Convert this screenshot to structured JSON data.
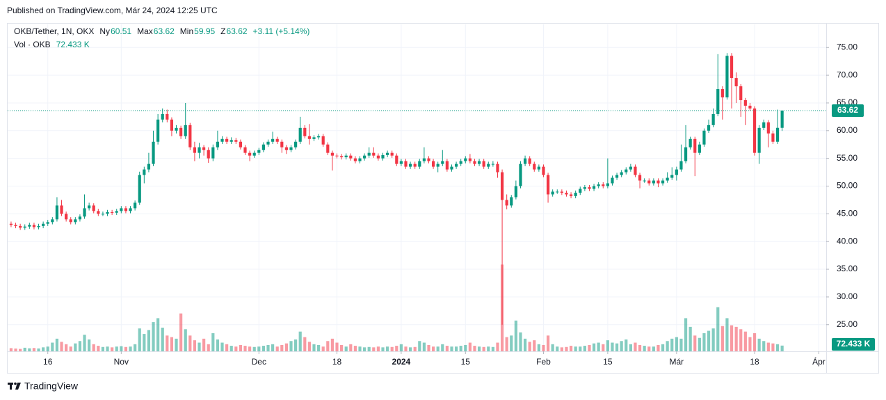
{
  "published": "Published on TradingView.com, Már 24, 2024 12:25 UTC",
  "brand": "TradingView",
  "chart_data": {
    "type": "candlestick",
    "title": "OKB/Tether, 1N, OKX",
    "ohlc_labels": [
      "Ny",
      "Max",
      "Min",
      "Z"
    ],
    "change_label": "+3.11 (+5.14%)",
    "volume_title": "Vol · OKB",
    "volume_last_label": "72.433 K",
    "up_color": "#089981",
    "down_color": "#f23645",
    "grid": true,
    "xlim": [
      -0.9,
      177.6
    ],
    "xticks": [
      {
        "value": 8,
        "label": "16"
      },
      {
        "value": 24,
        "label": "Nov"
      },
      {
        "value": 54,
        "label": "Dec"
      },
      {
        "value": 71,
        "label": "18"
      },
      {
        "value": 85,
        "label": "2024",
        "bold": true
      },
      {
        "value": 99,
        "label": "15"
      },
      {
        "value": 116,
        "label": "Feb"
      },
      {
        "value": 130,
        "label": "15"
      },
      {
        "value": 145,
        "label": "Már"
      },
      {
        "value": 162,
        "label": "18"
      },
      {
        "value": 176,
        "label": "Ápr"
      }
    ],
    "ylim": [
      20.2,
      79.3
    ],
    "yticks": [
      {
        "value": 25,
        "label": "25.00"
      },
      {
        "value": 30,
        "label": "30.00"
      },
      {
        "value": 35,
        "label": "35.00"
      },
      {
        "value": 40,
        "label": "40.00"
      },
      {
        "value": 45,
        "label": "45.00"
      },
      {
        "value": 50,
        "label": "50.00"
      },
      {
        "value": 55,
        "label": "55.00"
      },
      {
        "value": 60,
        "label": "60.00"
      },
      {
        "value": 65,
        "label": "65.00"
      },
      {
        "value": 70,
        "label": "70.00"
      },
      {
        "value": 75,
        "label": "75.00"
      }
    ],
    "volume_lim": [
      0,
      1500
    ],
    "open": [
      43.2,
      43.0,
      42.8,
      42.5,
      42.7,
      43.0,
      42.6,
      42.8,
      43.2,
      43.5,
      44.0,
      46.5,
      45.0,
      44.0,
      43.5,
      44.0,
      44.5,
      46.0,
      46.5,
      45.5,
      45.0,
      45.0,
      45.3,
      45.2,
      45.5,
      46.0,
      45.5,
      46.0,
      47.0,
      52.0,
      53.0,
      54.0,
      58.0,
      62.0,
      63.0,
      62.0,
      60.0,
      60.5,
      59.0,
      61.0,
      57.0,
      56.0,
      57.0,
      56.5,
      55.0,
      57.0,
      58.0,
      58.5,
      58.0,
      58.3,
      58.0,
      57.0,
      56.0,
      55.5,
      56.0,
      56.5,
      57.5,
      58.0,
      58.5,
      58.0,
      57.0,
      56.5,
      57.0,
      58.0,
      60.5,
      59.0,
      58.5,
      58.8,
      59.0,
      57.5,
      56.0,
      55.5,
      55.4,
      55.2,
      55.5,
      55.0,
      54.5,
      55.0,
      55.5,
      56.0,
      55.5,
      55.0,
      55.6,
      56.0,
      55.5,
      54.0,
      54.5,
      53.5,
      54.0,
      53.5,
      54.5,
      55.0,
      54.5,
      53.5,
      54.0,
      54.5,
      53.0,
      53.5,
      54.0,
      54.5,
      55.0,
      54.5,
      54.0,
      54.5,
      53.5,
      54.0,
      54.0,
      52.5,
      47.5,
      46.5,
      48.0,
      50.0,
      54.0,
      55.0,
      54.0,
      53.0,
      53.5,
      52.0,
      48.5,
      49.0,
      49.0,
      48.8,
      48.5,
      48.2,
      48.8,
      49.5,
      49.8,
      49.5,
      50.0,
      50.3,
      50.0,
      50.5,
      51.5,
      52.0,
      52.5,
      53.0,
      53.5,
      52.0,
      51.0,
      51.0,
      50.5,
      51.0,
      50.5,
      51.0,
      51.5,
      52.0,
      53.0,
      54.5,
      57.0,
      58.5,
      56.0,
      57.5,
      60.0,
      61.0,
      63.0,
      67.5,
      66.0,
      73.5,
      69.5,
      68.0,
      65.5,
      64.5,
      64.0,
      56.0,
      60.5,
      61.5,
      59.5,
      58.0,
      60.51
    ],
    "high": [
      43.6,
      43.4,
      43.2,
      43.1,
      43.4,
      43.4,
      43.2,
      43.6,
      43.9,
      44.4,
      48.0,
      47.5,
      45.4,
      44.4,
      44.4,
      44.9,
      48.5,
      47.0,
      46.9,
      45.9,
      45.4,
      45.7,
      45.7,
      45.9,
      46.4,
      46.4,
      46.4,
      47.4,
      52.6,
      53.5,
      56.0,
      60.0,
      63.0,
      64.0,
      63.8,
      62.4,
      61.0,
      60.9,
      65.0,
      61.4,
      58.0,
      57.8,
      57.4,
      57.0,
      57.5,
      60.0,
      59.0,
      58.9,
      58.8,
      58.7,
      58.4,
      57.4,
      56.4,
      56.4,
      56.9,
      57.9,
      58.4,
      59.8,
      58.9,
      58.4,
      57.4,
      57.4,
      58.4,
      62.5,
      61.0,
      61.2,
      59.2,
      59.4,
      59.4,
      57.9,
      56.4,
      55.9,
      55.8,
      55.9,
      55.9,
      55.4,
      55.4,
      55.9,
      57.0,
      57.0,
      55.9,
      56.0,
      56.4,
      56.4,
      55.9,
      54.9,
      54.9,
      54.4,
      54.4,
      54.9,
      57.0,
      55.4,
      54.9,
      54.4,
      56.5,
      54.9,
      53.9,
      54.4,
      54.9,
      55.4,
      55.8,
      54.9,
      54.9,
      54.9,
      54.4,
      54.5,
      54.4,
      53.0,
      48.5,
      48.4,
      51.0,
      54.5,
      55.5,
      55.4,
      54.4,
      53.9,
      53.9,
      52.4,
      49.4,
      49.4,
      49.4,
      49.2,
      48.9,
      49.2,
      49.9,
      50.2,
      50.2,
      50.4,
      50.7,
      50.7,
      55.0,
      51.9,
      52.4,
      52.9,
      53.4,
      54.0,
      53.9,
      52.4,
      51.4,
      51.4,
      51.4,
      51.4,
      51.4,
      52.5,
      53.4,
      53.5,
      57.5,
      61.0,
      58.9,
      58.9,
      58.0,
      60.4,
      62.0,
      64.0,
      73.8,
      68.0,
      74.0,
      74.0,
      70.5,
      68.4,
      65.9,
      65.0,
      64.4,
      61.0,
      62.0,
      61.9,
      60.0,
      63.8,
      63.62
    ],
    "low": [
      42.6,
      42.4,
      42.1,
      42.1,
      42.3,
      42.2,
      42.2,
      42.4,
      42.8,
      43.1,
      43.6,
      44.6,
      43.6,
      43.1,
      43.1,
      43.6,
      44.1,
      45.6,
      45.1,
      44.6,
      44.6,
      44.6,
      44.8,
      44.8,
      45.1,
      45.1,
      45.1,
      45.6,
      46.6,
      50.5,
      52.5,
      53.6,
      57.5,
      61.5,
      61.5,
      59.0,
      59.5,
      58.5,
      58.5,
      56.5,
      54.5,
      55.0,
      55.5,
      54.2,
      54.5,
      56.5,
      57.6,
      57.6,
      57.6,
      57.6,
      56.6,
      55.6,
      54.5,
      55.1,
      55.6,
      56.1,
      57.1,
      57.6,
      57.6,
      56.0,
      55.8,
      56.1,
      56.6,
      57.6,
      58.6,
      57.5,
      58.1,
      58.4,
      57.1,
      55.6,
      52.8,
      55.0,
      54.8,
      54.8,
      54.6,
      54.1,
      54.1,
      54.6,
      55.1,
      55.1,
      54.6,
      54.6,
      55.2,
      55.1,
      53.6,
      53.6,
      53.1,
      53.1,
      53.1,
      53.1,
      54.1,
      54.1,
      53.1,
      52.5,
      53.6,
      52.6,
      52.6,
      53.1,
      53.6,
      54.1,
      54.1,
      53.6,
      53.6,
      53.1,
      53.1,
      53.5,
      51.5,
      25.0,
      45.8,
      46.1,
      47.6,
      49.6,
      53.6,
      53.6,
      52.6,
      52.6,
      51.6,
      47.0,
      48.1,
      48.6,
      48.4,
      48.1,
      47.8,
      47.8,
      48.4,
      49.1,
      49.1,
      49.1,
      49.6,
      49.6,
      49.6,
      50.1,
      51.1,
      51.6,
      52.1,
      52.6,
      51.6,
      49.6,
      50.6,
      50.1,
      50.1,
      49.8,
      50.1,
      50.6,
      51.1,
      51.0,
      52.6,
      54.1,
      56.6,
      51.8,
      55.6,
      57.1,
      59.6,
      60.6,
      62.6,
      62.0,
      65.6,
      64.0,
      65.0,
      62.5,
      61.0,
      63.6,
      55.5,
      54.0,
      60.1,
      57.0,
      57.6,
      57.6,
      59.95
    ],
    "close": [
      43.0,
      42.8,
      42.5,
      42.7,
      43.0,
      42.6,
      42.8,
      43.2,
      43.5,
      44.0,
      46.5,
      45.0,
      44.0,
      43.5,
      44.0,
      44.5,
      46.0,
      46.5,
      45.5,
      45.0,
      45.0,
      45.3,
      45.2,
      45.5,
      46.0,
      45.5,
      46.0,
      47.0,
      52.0,
      53.0,
      54.0,
      58.0,
      62.0,
      63.0,
      62.0,
      60.0,
      60.5,
      59.0,
      61.0,
      57.0,
      56.0,
      57.0,
      56.5,
      55.0,
      57.0,
      58.0,
      58.5,
      58.0,
      58.3,
      58.0,
      57.0,
      56.0,
      55.5,
      56.0,
      56.5,
      57.5,
      58.0,
      58.5,
      58.0,
      57.0,
      56.5,
      57.0,
      58.0,
      60.5,
      59.0,
      58.5,
      58.8,
      59.0,
      57.5,
      56.0,
      55.5,
      55.4,
      55.2,
      55.5,
      55.0,
      54.5,
      55.0,
      55.5,
      56.0,
      55.5,
      55.0,
      55.6,
      56.0,
      55.5,
      54.0,
      54.5,
      53.5,
      54.0,
      53.5,
      54.5,
      55.0,
      54.5,
      53.5,
      54.0,
      54.5,
      53.0,
      53.5,
      54.0,
      54.5,
      55.0,
      54.5,
      54.0,
      54.5,
      53.5,
      54.0,
      54.0,
      52.5,
      47.5,
      46.5,
      48.0,
      50.0,
      54.0,
      55.0,
      54.0,
      53.0,
      53.5,
      52.0,
      48.5,
      49.0,
      49.0,
      48.8,
      48.5,
      48.2,
      48.8,
      49.5,
      49.8,
      49.5,
      50.0,
      50.3,
      50.0,
      50.5,
      51.5,
      52.0,
      52.5,
      53.0,
      53.5,
      52.0,
      51.0,
      51.0,
      50.5,
      51.0,
      50.5,
      51.0,
      51.5,
      52.0,
      53.0,
      54.5,
      57.0,
      58.5,
      56.0,
      57.5,
      60.0,
      61.0,
      63.0,
      67.5,
      66.0,
      73.5,
      69.5,
      68.0,
      65.5,
      64.5,
      64.0,
      56.0,
      60.5,
      61.5,
      59.5,
      58.0,
      60.51,
      63.62
    ],
    "volume": [
      40,
      35,
      30,
      45,
      38,
      42,
      36,
      50,
      60,
      110,
      160,
      120,
      90,
      60,
      100,
      130,
      210,
      150,
      90,
      70,
      55,
      60,
      50,
      60,
      65,
      55,
      60,
      90,
      290,
      220,
      270,
      370,
      420,
      300,
      200,
      180,
      160,
      480,
      280,
      200,
      140,
      110,
      160,
      90,
      230,
      150,
      110,
      90,
      70,
      60,
      80,
      70,
      60,
      55,
      60,
      70,
      80,
      90,
      60,
      80,
      100,
      130,
      150,
      250,
      180,
      120,
      90,
      80,
      60,
      130,
      160,
      110,
      80,
      60,
      90,
      70,
      60,
      50,
      55,
      50,
      60,
      50,
      60,
      55,
      70,
      90,
      60,
      50,
      55,
      130,
      110,
      80,
      60,
      60,
      90,
      70,
      60,
      60,
      70,
      80,
      110,
      70,
      60,
      55,
      60,
      55,
      110,
      1100,
      180,
      200,
      390,
      240,
      160,
      120,
      140,
      90,
      80,
      200,
      90,
      60,
      50,
      55,
      70,
      60,
      60,
      70,
      80,
      100,
      110,
      90,
      140,
      110,
      100,
      130,
      150,
      90,
      110,
      80,
      70,
      60,
      60,
      80,
      90,
      130,
      160,
      180,
      160,
      420,
      310,
      200,
      170,
      230,
      260,
      290,
      560,
      320,
      420,
      330,
      310,
      280,
      250,
      180,
      230,
      160,
      130,
      110,
      100,
      90,
      72.433
    ]
  }
}
